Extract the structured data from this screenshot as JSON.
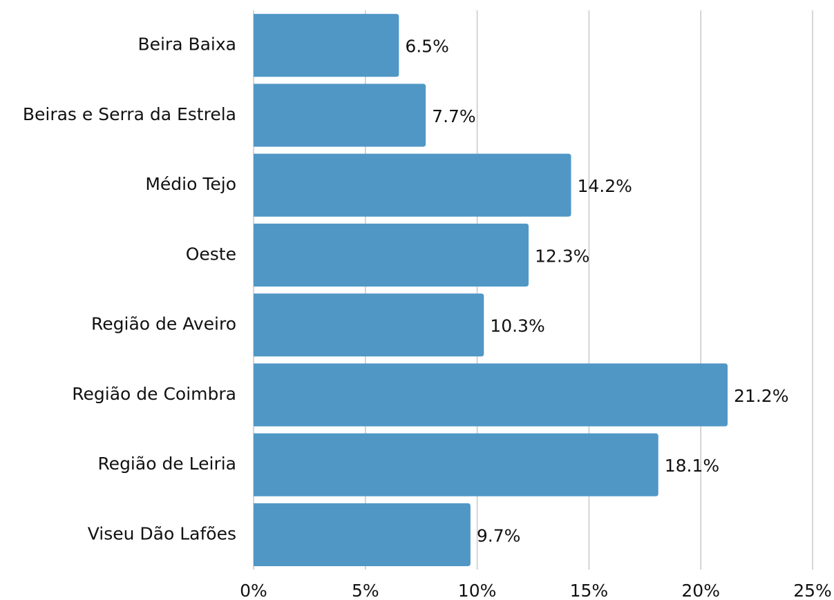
{
  "chart_data": {
    "type": "barh",
    "categories": [
      "Beira Baixa",
      "Beiras e Serra da Estrela",
      "Médio Tejo",
      "Oeste",
      "Região de Aveiro",
      "Região de Coimbra",
      "Região de Leiria",
      "Viseu Dão Lafões"
    ],
    "values": [
      6.5,
      7.7,
      14.2,
      12.3,
      10.3,
      21.2,
      18.1,
      9.7
    ],
    "value_labels": [
      "6.5%",
      "7.7%",
      "14.2%",
      "12.3%",
      "10.3%",
      "21.2%",
      "18.1%",
      "9.7%"
    ],
    "color": "#5097c6",
    "xlim": [
      0,
      25
    ],
    "xticks": [
      {
        "value": 0,
        "label": "0%"
      },
      {
        "value": 5,
        "label": "5%"
      },
      {
        "value": 10,
        "label": "10%"
      },
      {
        "value": 15,
        "label": "15%"
      },
      {
        "value": 20,
        "label": "20%"
      },
      {
        "value": 25,
        "label": "25%"
      }
    ],
    "grid": true
  }
}
